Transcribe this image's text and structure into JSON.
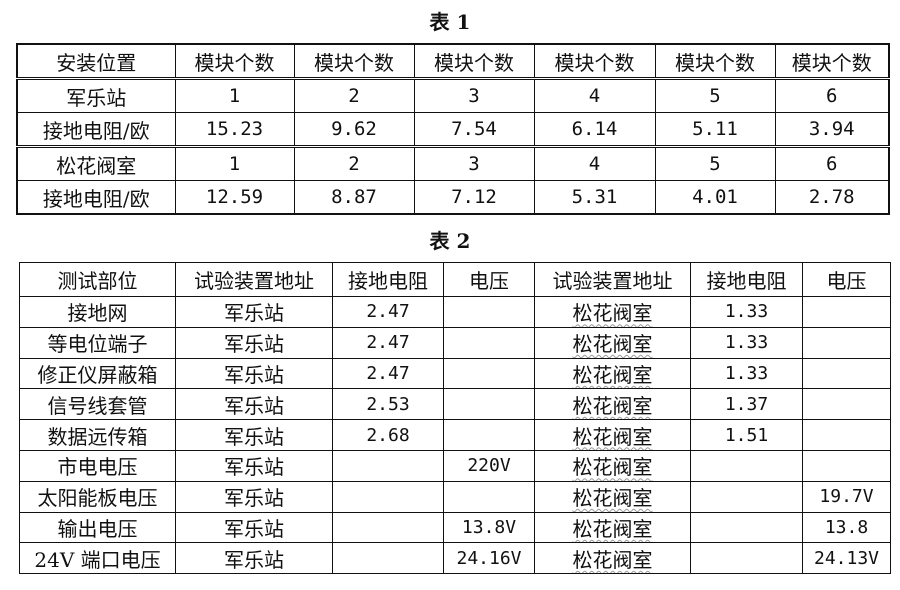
{
  "table1": {
    "title": "表 1",
    "rows": [
      [
        "安装位置",
        "模块个数",
        "模块个数",
        "模块个数",
        "模块个数",
        "模块个数",
        "模块个数"
      ],
      [
        "军乐站",
        "1",
        "2",
        "3",
        "4",
        "5",
        "6"
      ],
      [
        "接地电阻/欧",
        "15.23",
        "9.62",
        "7.54",
        "6.14",
        "5.11",
        "3.94"
      ],
      [
        "松花阀室",
        "1",
        "2",
        "3",
        "4",
        "5",
        "6"
      ],
      [
        "接地电阻/欧",
        "12.59",
        "8.87",
        "7.12",
        "5.31",
        "4.01",
        "2.78"
      ]
    ]
  },
  "table2": {
    "title": "表 2",
    "headers": [
      "测试部位",
      "试验装置地址",
      "接地电阻",
      "电压",
      "试验装置地址",
      "接地电阻",
      "电压"
    ],
    "rows": [
      [
        "接地网",
        "军乐站",
        "2.47",
        "",
        "松花阀室",
        "1.33",
        ""
      ],
      [
        "等电位端子",
        "军乐站",
        "2.47",
        "",
        "松花阀室",
        "1.33",
        ""
      ],
      [
        "修正仪屏蔽箱",
        "军乐站",
        "2.47",
        "",
        "松花阀室",
        "1.33",
        ""
      ],
      [
        "信号线套管",
        "军乐站",
        "2.53",
        "",
        "松花阀室",
        "1.37",
        ""
      ],
      [
        "数据远传箱",
        "军乐站",
        "2.68",
        "",
        "松花阀室",
        "1.51",
        ""
      ],
      [
        "市电电压",
        "军乐站",
        "",
        "220V",
        "松花阀室",
        "",
        ""
      ],
      [
        "太阳能板电压",
        "军乐站",
        "",
        "",
        "松花阀室",
        "",
        "19.7V"
      ],
      [
        "输出电压",
        "军乐站",
        "",
        "13.8V",
        "松花阀室",
        "",
        "13.8"
      ],
      [
        "24V 端口电压",
        "军乐站",
        "",
        "24.16V",
        "松花阀室",
        "",
        "24.13V"
      ]
    ]
  }
}
